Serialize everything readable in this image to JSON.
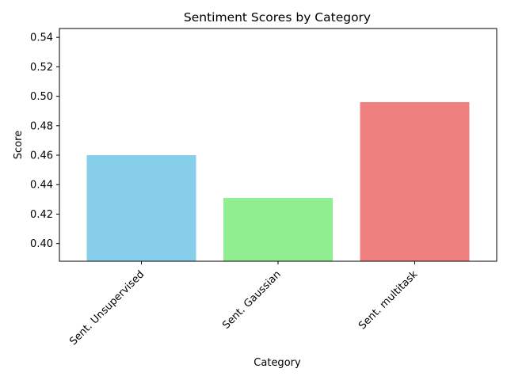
{
  "chart_data": {
    "type": "bar",
    "title": "Sentiment Scores by Category",
    "xlabel": "Category",
    "ylabel": "Score",
    "categories": [
      "Sent. Unsupervised",
      "Sent. Gaussian",
      "Sent. multitask"
    ],
    "values": [
      0.46,
      0.431,
      0.496
    ],
    "colors": [
      "#87CEEB",
      "#90EE90",
      "#F08080"
    ],
    "ylim": [
      0.388,
      0.546
    ],
    "yticks": [
      "0.40",
      "0.42",
      "0.44",
      "0.46",
      "0.48",
      "0.50",
      "0.52",
      "0.54"
    ],
    "grid": false,
    "legend": false,
    "xtick_rotation": "45 degrees, right-aligned"
  }
}
